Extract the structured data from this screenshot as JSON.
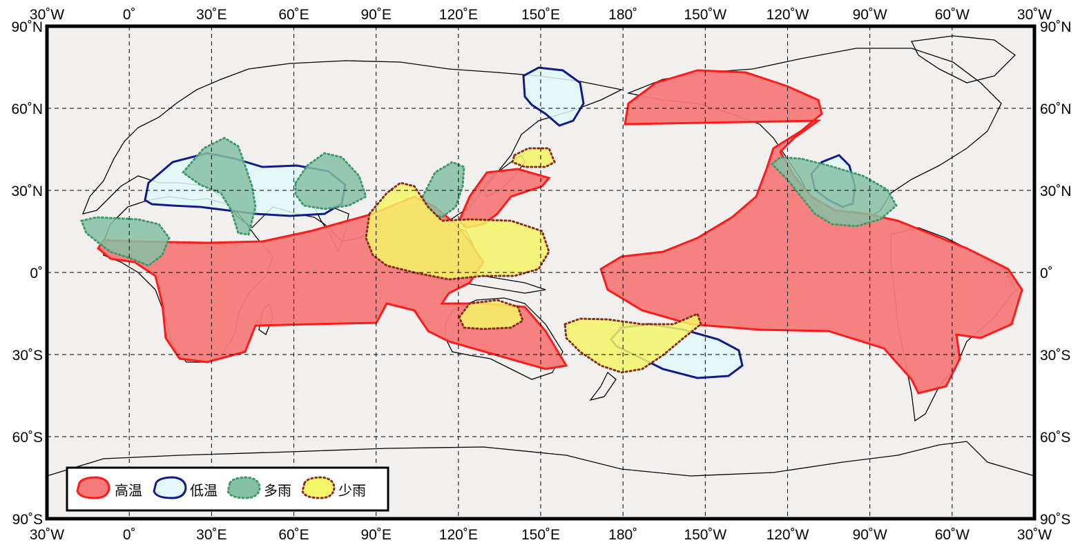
{
  "map": {
    "lon_labels": [
      "30˚W",
      "0˚",
      "30˚E",
      "60˚E",
      "90˚E",
      "120˚E",
      "150˚E",
      "180˚",
      "150˚W",
      "120˚W",
      "90˚W",
      "60˚W",
      "30˚W"
    ],
    "lat_labels": [
      "90˚N",
      "60˚N",
      "30˚N",
      "0˚",
      "30˚S",
      "60˚S",
      "90˚S"
    ]
  },
  "legend": {
    "items": [
      {
        "label": "高温",
        "fill": "#f57a7a",
        "stroke": "#ff1a1a",
        "dash": "solid"
      },
      {
        "label": "低温",
        "fill": "#e2f8f8",
        "stroke": "#101a8a",
        "dash": "solid"
      },
      {
        "label": "多雨",
        "fill": "#86c0a3",
        "stroke": "#3e9a6a",
        "dash": "dotted"
      },
      {
        "label": "少雨",
        "fill": "#f4f468",
        "stroke": "#8a2a1a",
        "dash": "dotted"
      }
    ]
  },
  "colors": {
    "ocean": "#f2f0ef",
    "frame": "#000000",
    "grid": "#000000"
  }
}
